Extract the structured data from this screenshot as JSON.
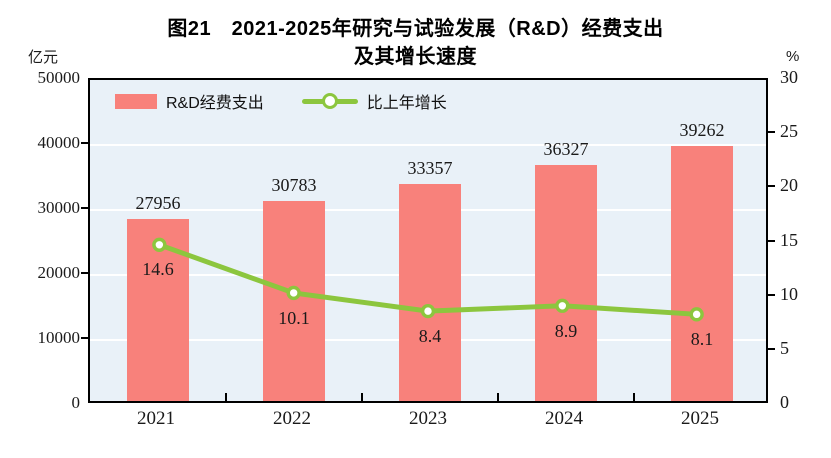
{
  "title": {
    "line1": "图21　2021-2025年研究与试验发展（R&D）经费支出",
    "line2": "及其增长速度"
  },
  "axes": {
    "left_unit": "亿元",
    "right_unit": "%"
  },
  "legend": {
    "bar_label": "R&D经费支出",
    "line_label": "比上年增长"
  },
  "colors": {
    "bar": "#F8817B",
    "line": "#8CC63E",
    "marker_fill": "#FFFFFF",
    "plot_bg": "#E9F1F8",
    "grid": "#FFFFFF",
    "axis_border": "#000000",
    "text": "#1A1A1A"
  },
  "chart_data": {
    "type": "bar+line combo",
    "categories": [
      "2021",
      "2022",
      "2023",
      "2024",
      "2025"
    ],
    "series": [
      {
        "name": "R&D经费支出",
        "type": "bar",
        "axis": "left",
        "unit": "亿元",
        "values": [
          27956,
          30783,
          33357,
          36327,
          39262
        ],
        "labels": [
          "27956",
          "30783",
          "33357",
          "36327",
          "39262"
        ]
      },
      {
        "name": "比上年增长",
        "type": "line",
        "axis": "right",
        "unit": "%",
        "values": [
          14.6,
          10.1,
          8.4,
          8.9,
          8.1
        ],
        "labels": [
          "14.6",
          "10.1",
          "8.4",
          "8.9",
          "8.1"
        ]
      }
    ],
    "title": "图21 2021-2025年研究与试验发展（R&D）经费支出及其增长速度",
    "ylabel_left": "亿元",
    "ylabel_right": "%",
    "ylim_left": [
      0,
      50000
    ],
    "ylim_right": [
      0,
      30
    ],
    "left_ticks": [
      50000,
      40000,
      30000,
      20000,
      10000,
      0
    ],
    "right_ticks": [
      30,
      25,
      20,
      15,
      10,
      5,
      0
    ],
    "grid": "horizontal white gridlines at left-axis ticks (every 10000)",
    "legend_position": "top-left inside plot"
  }
}
